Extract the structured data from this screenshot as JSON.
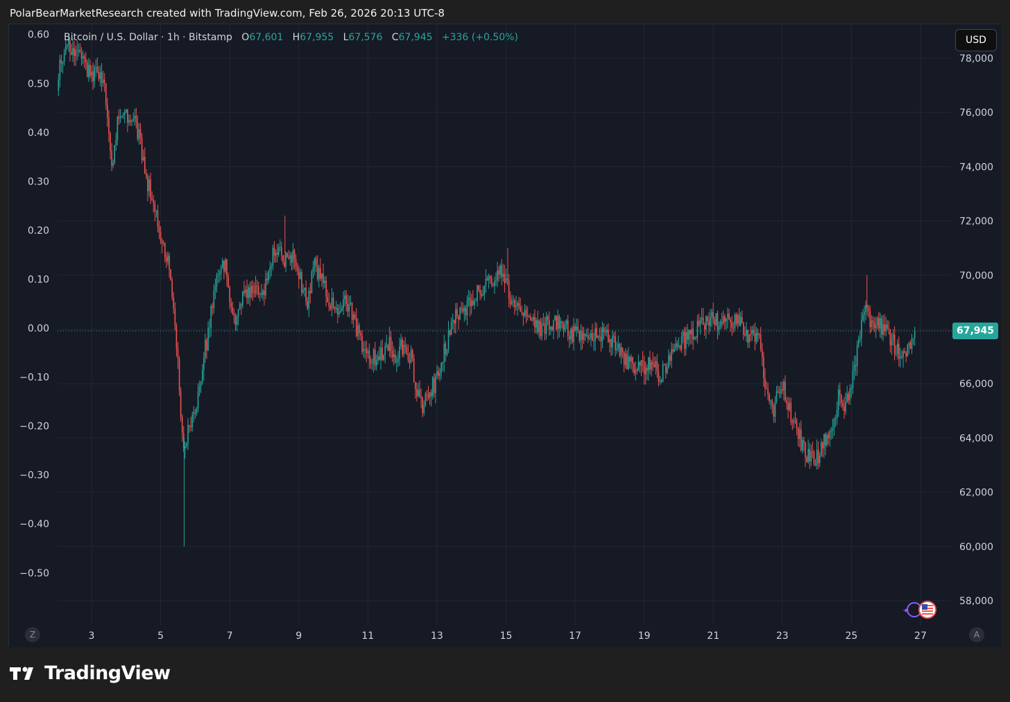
{
  "header": {
    "text": "PolarBearMarketResearch created with TradingView.com, Feb 26, 2026 20:13 UTC-8"
  },
  "legend": {
    "symbol": "Bitcoin / U.S. Dollar · 1h · Bitstamp",
    "o_label": "O",
    "o": "67,601",
    "h_label": "H",
    "h": "67,955",
    "l_label": "L",
    "l": "67,576",
    "c_label": "C",
    "c": "67,945",
    "change": "+336 (+0.50%)"
  },
  "currency_button": "USD",
  "last_price_badge": "67,945",
  "corner_left": "Z",
  "corner_right": "A",
  "brand": "TradingView",
  "colors": {
    "up": "#26a69a",
    "down": "#ef5350",
    "background": "#161a25",
    "grid": "#232735",
    "axis_text": "#d1d4dc"
  },
  "chart_data": {
    "type": "candlestick",
    "interval": "1h",
    "right_axis": {
      "label": "USD",
      "ticks": [
        58000,
        60000,
        62000,
        64000,
        66000,
        68000,
        70000,
        72000,
        74000,
        76000,
        78000
      ],
      "tick_labels": [
        "58,000",
        "60,000",
        "62,000",
        "64,000",
        "66,000",
        "",
        "70,000",
        "72,000",
        "74,000",
        "76,000",
        "78,000"
      ]
    },
    "left_axis": {
      "ticks": [
        0.6,
        0.5,
        0.4,
        0.3,
        0.2,
        0.1,
        0.0,
        -0.1,
        -0.2,
        -0.3,
        -0.4,
        -0.5
      ],
      "tick_labels": [
        "0.60",
        "0.50",
        "0.40",
        "0.30",
        "0.20",
        "0.10",
        "0.00",
        "−0.10",
        "−0.20",
        "−0.30",
        "−0.40",
        "−0.50"
      ]
    },
    "x_axis": {
      "tick_labels": [
        "3",
        "5",
        "7",
        "9",
        "11",
        "13",
        "15",
        "17",
        "19",
        "21",
        "23",
        "25",
        "27"
      ],
      "tick_days": [
        3,
        5,
        7,
        9,
        11,
        13,
        15,
        17,
        19,
        21,
        23,
        25,
        27
      ]
    },
    "last_price": 67945,
    "close_path": [
      [
        2.0,
        76800
      ],
      [
        2.1,
        77900
      ],
      [
        2.3,
        78500
      ],
      [
        2.55,
        78200
      ],
      [
        2.75,
        77900
      ],
      [
        2.95,
        77400
      ],
      [
        3.2,
        77600
      ],
      [
        3.35,
        77000
      ],
      [
        3.5,
        75400
      ],
      [
        3.6,
        73600
      ],
      [
        3.75,
        75800
      ],
      [
        3.95,
        76000
      ],
      [
        4.2,
        75700
      ],
      [
        4.4,
        75100
      ],
      [
        4.55,
        73700
      ],
      [
        4.7,
        73200
      ],
      [
        4.85,
        72400
      ],
      [
        4.95,
        71700
      ],
      [
        5.1,
        70900
      ],
      [
        5.25,
        70300
      ],
      [
        5.4,
        68100
      ],
      [
        5.5,
        66600
      ],
      [
        5.6,
        64400
      ],
      [
        5.7,
        63700
      ],
      [
        5.85,
        64500
      ],
      [
        6.05,
        65300
      ],
      [
        6.2,
        66600
      ],
      [
        6.35,
        67700
      ],
      [
        6.55,
        69300
      ],
      [
        6.7,
        70300
      ],
      [
        6.85,
        70500
      ],
      [
        7.0,
        69100
      ],
      [
        7.1,
        68100
      ],
      [
        7.3,
        69100
      ],
      [
        7.55,
        69500
      ],
      [
        7.8,
        69300
      ],
      [
        8.0,
        69600
      ],
      [
        8.25,
        70700
      ],
      [
        8.45,
        71100
      ],
      [
        8.65,
        70400
      ],
      [
        8.85,
        70900
      ],
      [
        9.05,
        69800
      ],
      [
        9.25,
        69100
      ],
      [
        9.45,
        70400
      ],
      [
        9.65,
        69800
      ],
      [
        9.85,
        69200
      ],
      [
        10.1,
        68700
      ],
      [
        10.35,
        69200
      ],
      [
        10.6,
        68300
      ],
      [
        10.85,
        67200
      ],
      [
        11.05,
        67000
      ],
      [
        11.3,
        66900
      ],
      [
        11.55,
        67600
      ],
      [
        11.8,
        67100
      ],
      [
        12.05,
        67500
      ],
      [
        12.25,
        66900
      ],
      [
        12.4,
        65900
      ],
      [
        12.6,
        65100
      ],
      [
        12.85,
        65800
      ],
      [
        13.05,
        66400
      ],
      [
        13.25,
        67400
      ],
      [
        13.45,
        68400
      ],
      [
        13.75,
        68500
      ],
      [
        14.05,
        69200
      ],
      [
        14.35,
        69600
      ],
      [
        14.65,
        69800
      ],
      [
        14.9,
        70200
      ],
      [
        15.15,
        69100
      ],
      [
        15.4,
        68500
      ],
      [
        15.7,
        68700
      ],
      [
        16.0,
        68000
      ],
      [
        16.3,
        68300
      ],
      [
        16.6,
        68200
      ],
      [
        16.85,
        67900
      ],
      [
        17.1,
        67800
      ],
      [
        17.35,
        67500
      ],
      [
        17.65,
        67800
      ],
      [
        17.95,
        67700
      ],
      [
        18.2,
        67300
      ],
      [
        18.45,
        66800
      ],
      [
        18.7,
        66700
      ],
      [
        18.95,
        66500
      ],
      [
        19.2,
        66700
      ],
      [
        19.45,
        66300
      ],
      [
        19.75,
        66900
      ],
      [
        20.05,
        67500
      ],
      [
        20.35,
        67800
      ],
      [
        20.65,
        68100
      ],
      [
        20.95,
        68300
      ],
      [
        21.25,
        68300
      ],
      [
        21.55,
        68200
      ],
      [
        21.8,
        68200
      ],
      [
        22.05,
        67700
      ],
      [
        22.35,
        67500
      ],
      [
        22.55,
        65400
      ],
      [
        22.75,
        65100
      ],
      [
        23.0,
        66000
      ],
      [
        23.25,
        64800
      ],
      [
        23.45,
        64300
      ],
      [
        23.65,
        63400
      ],
      [
        23.85,
        63200
      ],
      [
        24.05,
        63400
      ],
      [
        24.25,
        64000
      ],
      [
        24.45,
        64600
      ],
      [
        24.65,
        65600
      ],
      [
        24.8,
        65200
      ],
      [
        25.0,
        66000
      ],
      [
        25.2,
        67400
      ],
      [
        25.35,
        68800
      ],
      [
        25.55,
        68300
      ],
      [
        25.8,
        68200
      ],
      [
        26.05,
        67900
      ],
      [
        26.3,
        67300
      ],
      [
        26.55,
        67100
      ],
      [
        26.7,
        67600
      ],
      [
        26.85,
        67945
      ]
    ]
  }
}
